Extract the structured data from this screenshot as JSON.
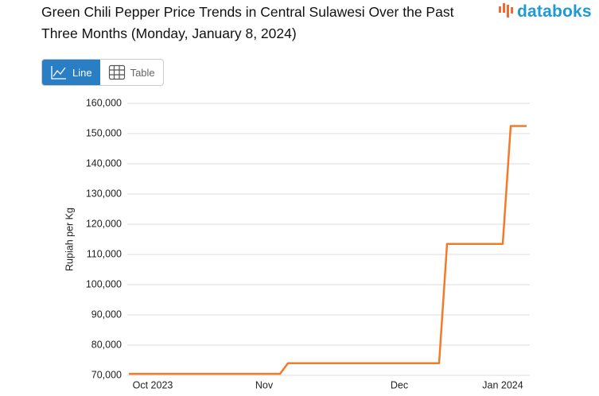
{
  "header": {
    "logo": "databoks"
  },
  "toolbar": {
    "buttons": [
      "Line",
      "Table"
    ]
  },
  "chart_data": {
    "type": "line",
    "title": "Green Chili Pepper Price Trends in Central Sulawesi Over the Past Three Months (Monday, January 8, 2024)",
    "y_label": "Rupiah per Kg",
    "categories": [
      null,
      null,
      null,
      "Oct 2023",
      null,
      null,
      null,
      null,
      null,
      null,
      null,
      null,
      null,
      null,
      null,
      null,
      null,
      "Nov",
      null,
      null,
      null,
      null,
      null,
      null,
      null,
      null,
      null,
      null,
      null,
      null,
      null,
      null,
      null,
      null,
      "Dec",
      null,
      null,
      null,
      null,
      null,
      null,
      null,
      null,
      null,
      null,
      null,
      null,
      "Jan 2024",
      null,
      null,
      null
    ],
    "values": [
      70500,
      70500,
      70500,
      70500,
      70500,
      70500,
      70500,
      70500,
      70500,
      70500,
      70500,
      70500,
      70500,
      70500,
      70500,
      70500,
      70500,
      70500,
      70500,
      70500,
      74000,
      74000,
      74000,
      74000,
      74000,
      74000,
      74000,
      74000,
      74000,
      74000,
      74000,
      74000,
      74000,
      74000,
      74000,
      74000,
      74000,
      74000,
      74000,
      74000,
      113500,
      113500,
      113500,
      113500,
      113500,
      113500,
      113500,
      113500,
      152500,
      152500,
      152500
    ],
    "color": "#f47a28",
    "ylim": [
      70000,
      160000
    ],
    "yticks": [
      {
        "value": 70000,
        "label": "70,000"
      },
      {
        "value": 80000,
        "label": "80,000"
      },
      {
        "value": 90000,
        "label": "90,000"
      },
      {
        "value": 100000,
        "label": "100,000"
      },
      {
        "value": 110000,
        "label": "110,000"
      },
      {
        "value": 120000,
        "label": "120,000"
      },
      {
        "value": 130000,
        "label": "130,000"
      },
      {
        "value": 140000,
        "label": "140,000"
      },
      {
        "value": 150000,
        "label": "150,000"
      },
      {
        "value": 160000,
        "label": "160,000"
      }
    ],
    "grid": true
  }
}
